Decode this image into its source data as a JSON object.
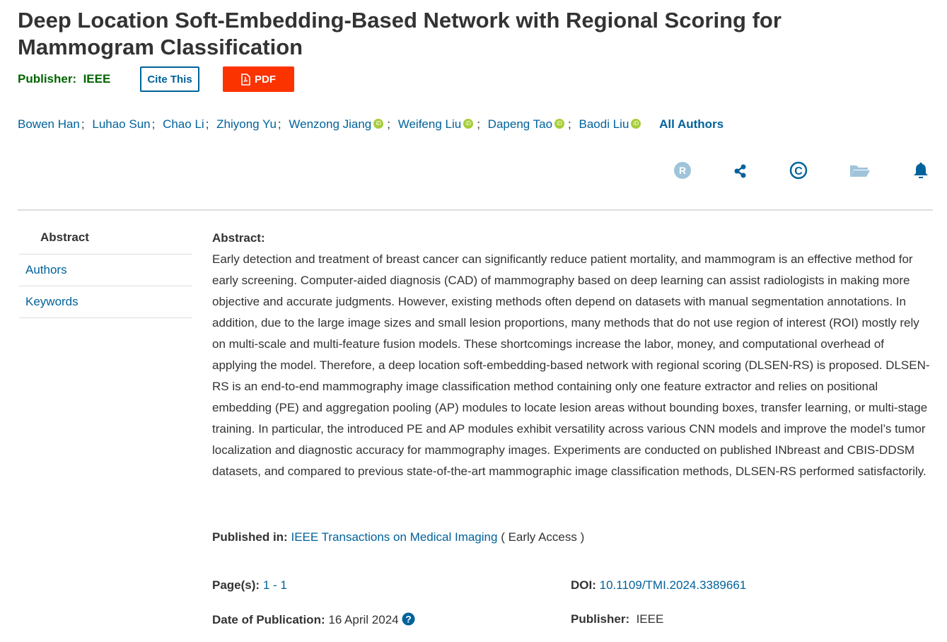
{
  "title": "Deep Location Soft-Embedding-Based Network with Regional Scoring for Mammogram Classification",
  "publisher_label": "Publisher:",
  "publisher": "IEEE",
  "cite_button": "Cite This",
  "pdf_button": "PDF",
  "authors": [
    "Bowen Han",
    "Luhao Sun",
    "Chao Li",
    "Zhiyong Yu",
    "Wenzong Jiang",
    "Weifeng Liu",
    "Dapeng Tao",
    "Baodi Liu"
  ],
  "all_authors": "All Authors",
  "sidebar": [
    "Abstract",
    "Authors",
    "Keywords"
  ],
  "abstract_heading": "Abstract:",
  "abstract": "Early detection and treatment of breast cancer can significantly reduce patient mortality, and mammogram is an effective method for early screening. Computer-aided diagnosis (CAD) of mammography based on deep learning can assist radiologists in making more objective and accurate judgments. However, existing methods often depend on datasets with manual segmentation annotations. In addition, due to the large image sizes and small lesion proportions, many methods that do not use region of interest (ROI) mostly rely on multi-scale and multi-feature fusion models. These shortcomings increase the labor, money, and computational overhead of applying the model. Therefore, a deep location soft-embedding-based network with regional scoring (DLSEN-RS) is proposed. DLSEN-RS is an end-to-end mammography image classification method containing only one feature extractor and relies on positional embedding (PE) and aggregation pooling (AP) modules to locate lesion areas without bounding boxes, transfer learning, or multi-stage training. In particular, the introduced PE and AP modules exhibit versatility across various CNN models and improve the model’s tumor localization and diagnostic accuracy for mammography images. Experiments are conducted on published INbreast and CBIS-DDSM datasets, and compared to previous state-of-the-art mammographic image classification methods, DLSEN-RS performed satisfactorily.",
  "published_in_label": "Published in:",
  "journal": "IEEE Transactions on Medical Imaging",
  "access": "( Early Access )",
  "pages_label": "Page(s):",
  "pages": "1 - 1",
  "doi_label": "DOI:",
  "doi": "10.1109/TMI.2024.3389661",
  "date_label": "Date of Publication:",
  "date": "16 April 2024",
  "publisher2_label": "Publisher:",
  "publisher2": "IEEE"
}
